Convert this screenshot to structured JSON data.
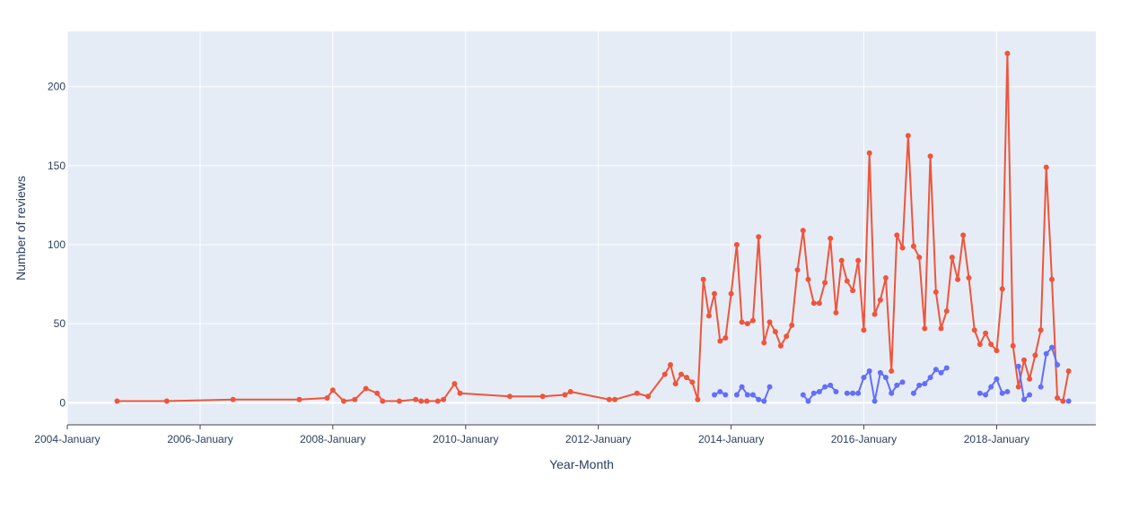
{
  "chart_data": {
    "type": "line",
    "title": "",
    "xlabel": "Year-Month",
    "ylabel": "Number of reviews",
    "xlim": [
      "2004-01-01",
      "2019-07-01"
    ],
    "ylim": [
      -14,
      235
    ],
    "x_ticks": [
      "2004-January",
      "2006-January",
      "2008-January",
      "2010-January",
      "2012-January",
      "2014-January",
      "2016-January",
      "2018-January"
    ],
    "y_ticks": [
      0,
      50,
      100,
      150,
      200
    ],
    "grid": true,
    "legend": "none",
    "colors": {
      "plot_bg": "#e5ecf6",
      "grid": "#ffffff",
      "red": "#ef553b",
      "blue": "#636efa",
      "text": "#2a3f5f"
    },
    "series": [
      {
        "color": "#ef553b",
        "points": [
          [
            "2004-10",
            1
          ],
          [
            "2005-07",
            1
          ],
          [
            "2006-07",
            2
          ],
          [
            "2007-07",
            2
          ],
          [
            "2007-12",
            3
          ],
          [
            "2008-01",
            8
          ],
          [
            "2008-03",
            1
          ],
          [
            "2008-05",
            2
          ],
          [
            "2008-07",
            9
          ],
          [
            "2008-09",
            6
          ],
          [
            "2008-10",
            1
          ],
          [
            "2009-01",
            1
          ],
          [
            "2009-04",
            2
          ],
          [
            "2009-05",
            1
          ],
          [
            "2009-06",
            1
          ],
          [
            "2009-08",
            1
          ],
          [
            "2009-09",
            2
          ],
          [
            "2009-11",
            12
          ],
          [
            "2009-12",
            6
          ],
          [
            "2010-09",
            4
          ],
          [
            "2011-03",
            4
          ],
          [
            "2011-07",
            5
          ],
          [
            "2011-08",
            7
          ],
          [
            "2012-03",
            2
          ],
          [
            "2012-04",
            2
          ],
          [
            "2012-08",
            6
          ],
          [
            "2012-10",
            4
          ],
          [
            "2013-01",
            18
          ],
          [
            "2013-02",
            24
          ],
          [
            "2013-03",
            12
          ],
          [
            "2013-04",
            18
          ],
          [
            "2013-05",
            16
          ],
          [
            "2013-06",
            13
          ],
          [
            "2013-07",
            2
          ],
          [
            "2013-08",
            78
          ],
          [
            "2013-09",
            55
          ],
          [
            "2013-10",
            69
          ],
          [
            "2013-11",
            39
          ],
          [
            "2013-12",
            41
          ],
          [
            "2014-01",
            69
          ],
          [
            "2014-02",
            100
          ],
          [
            "2014-03",
            51
          ],
          [
            "2014-04",
            50
          ],
          [
            "2014-05",
            52
          ],
          [
            "2014-06",
            105
          ],
          [
            "2014-07",
            38
          ],
          [
            "2014-08",
            51
          ],
          [
            "2014-09",
            45
          ],
          [
            "2014-10",
            36
          ],
          [
            "2014-11",
            42
          ],
          [
            "2014-12",
            49
          ],
          [
            "2015-01",
            84
          ],
          [
            "2015-02",
            109
          ],
          [
            "2015-03",
            78
          ],
          [
            "2015-04",
            63
          ],
          [
            "2015-05",
            63
          ],
          [
            "2015-06",
            76
          ],
          [
            "2015-07",
            104
          ],
          [
            "2015-08",
            57
          ],
          [
            "2015-09",
            90
          ],
          [
            "2015-10",
            77
          ],
          [
            "2015-11",
            71
          ],
          [
            "2015-12",
            90
          ],
          [
            "2016-01",
            46
          ],
          [
            "2016-02",
            158
          ],
          [
            "2016-03",
            56
          ],
          [
            "2016-04",
            65
          ],
          [
            "2016-05",
            79
          ],
          [
            "2016-06",
            20
          ],
          [
            "2016-07",
            106
          ],
          [
            "2016-08",
            98
          ],
          [
            "2016-09",
            169
          ],
          [
            "2016-10",
            99
          ],
          [
            "2016-11",
            92
          ],
          [
            "2016-12",
            47
          ],
          [
            "2017-01",
            156
          ],
          [
            "2017-02",
            70
          ],
          [
            "2017-03",
            47
          ],
          [
            "2017-04",
            58
          ],
          [
            "2017-05",
            92
          ],
          [
            "2017-06",
            78
          ],
          [
            "2017-07",
            106
          ],
          [
            "2017-08",
            79
          ],
          [
            "2017-09",
            46
          ],
          [
            "2017-10",
            37
          ],
          [
            "2017-11",
            44
          ],
          [
            "2017-12",
            37
          ],
          [
            "2018-01",
            33
          ],
          [
            "2018-02",
            72
          ],
          [
            "2018-03",
            221
          ],
          [
            "2018-04",
            36
          ],
          [
            "2018-05",
            10
          ],
          [
            "2018-06",
            27
          ],
          [
            "2018-07",
            15
          ],
          [
            "2018-08",
            30
          ],
          [
            "2018-09",
            46
          ],
          [
            "2018-10",
            149
          ],
          [
            "2018-11",
            78
          ],
          [
            "2018-12",
            3
          ],
          [
            "2019-01",
            1
          ],
          [
            "2019-02",
            20
          ]
        ]
      },
      {
        "color": "#636efa",
        "segments": [
          [
            [
              "2013-10",
              5
            ],
            [
              "2013-11",
              7
            ],
            [
              "2013-12",
              5
            ]
          ],
          [
            [
              "2014-02",
              5
            ],
            [
              "2014-03",
              10
            ],
            [
              "2014-04",
              5
            ],
            [
              "2014-05",
              5
            ],
            [
              "2014-06",
              2
            ],
            [
              "2014-07",
              1
            ],
            [
              "2014-08",
              10
            ]
          ],
          [
            [
              "2015-02",
              5
            ],
            [
              "2015-03",
              1
            ],
            [
              "2015-04",
              6
            ],
            [
              "2015-05",
              7
            ],
            [
              "2015-06",
              10
            ],
            [
              "2015-07",
              11
            ],
            [
              "2015-08",
              7
            ]
          ],
          [
            [
              "2015-10",
              6
            ],
            [
              "2015-11",
              6
            ],
            [
              "2015-12",
              6
            ],
            [
              "2016-01",
              16
            ],
            [
              "2016-02",
              20
            ],
            [
              "2016-03",
              1
            ],
            [
              "2016-04",
              19
            ],
            [
              "2016-05",
              16
            ],
            [
              "2016-06",
              6
            ],
            [
              "2016-07",
              11
            ],
            [
              "2016-08",
              13
            ]
          ],
          [
            [
              "2016-10",
              6
            ],
            [
              "2016-11",
              11
            ],
            [
              "2016-12",
              12
            ],
            [
              "2017-01",
              16
            ],
            [
              "2017-02",
              21
            ],
            [
              "2017-03",
              19
            ],
            [
              "2017-04",
              22
            ]
          ],
          [
            [
              "2017-10",
              6
            ],
            [
              "2017-11",
              5
            ],
            [
              "2017-12",
              10
            ],
            [
              "2018-01",
              15
            ],
            [
              "2018-02",
              6
            ],
            [
              "2018-03",
              7
            ]
          ],
          [
            [
              "2018-05",
              23
            ],
            [
              "2018-06",
              2
            ],
            [
              "2018-07",
              5
            ]
          ],
          [
            [
              "2018-09",
              10
            ],
            [
              "2018-10",
              31
            ],
            [
              "2018-11",
              35
            ],
            [
              "2018-12",
              24
            ]
          ],
          [
            [
              "2019-02",
              1
            ]
          ]
        ]
      }
    ]
  }
}
